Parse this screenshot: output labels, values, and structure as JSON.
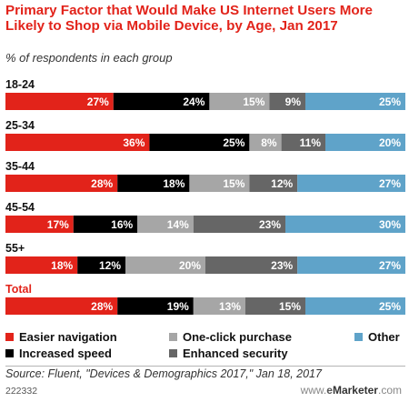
{
  "header": {
    "title": "Primary Factor that Would Make US Internet Users More Likely to Shop via Mobile Device, by Age, Jan 2017",
    "subtitle": "% of respondents in each group"
  },
  "colors": {
    "accent": "#e2231a",
    "series": [
      "#e2231a",
      "#000000",
      "#a6a6a6",
      "#666666",
      "#5fa3c9"
    ]
  },
  "chart_data": {
    "type": "bar",
    "stacked": true,
    "orientation": "horizontal",
    "categories": [
      "18-24",
      "25-34",
      "35-44",
      "45-54",
      "55+",
      "Total"
    ],
    "series": [
      {
        "name": "Easier navigation",
        "values": [
          27,
          36,
          28,
          17,
          18,
          28
        ]
      },
      {
        "name": "Increased speed",
        "values": [
          24,
          25,
          18,
          16,
          12,
          19
        ]
      },
      {
        "name": "One-click purchase",
        "values": [
          15,
          8,
          15,
          14,
          20,
          13
        ]
      },
      {
        "name": "Enhanced security",
        "values": [
          9,
          11,
          12,
          23,
          23,
          15
        ]
      },
      {
        "name": "Other",
        "values": [
          25,
          20,
          27,
          30,
          27,
          25
        ]
      }
    ],
    "value_suffix": "%"
  },
  "legend": {
    "items": [
      {
        "label": "Easier navigation",
        "color": "#e2231a"
      },
      {
        "label": "Increased speed",
        "color": "#000000"
      },
      {
        "label": "One-click purchase",
        "color": "#a6a6a6"
      },
      {
        "label": "Enhanced security",
        "color": "#666666"
      },
      {
        "label": "Other",
        "color": "#5fa3c9"
      }
    ]
  },
  "footer": {
    "source": "Source: Fluent, \"Devices & Demographics 2017,\" Jan 18, 2017",
    "chart_id": "222332",
    "brand_prefix": "www.",
    "brand_e": "e",
    "brand_name": "Marketer",
    "brand_suffix": ".com"
  }
}
